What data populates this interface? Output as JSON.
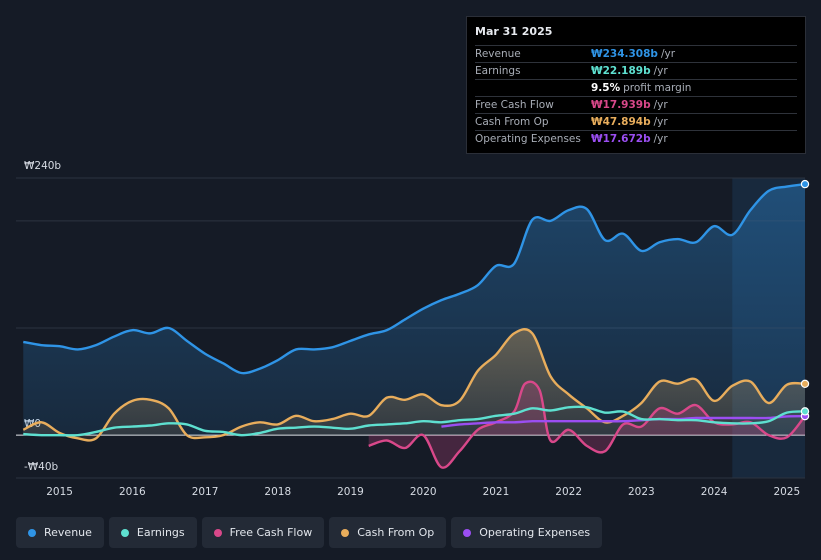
{
  "colors": {
    "revenue": "#2f94e6",
    "earnings": "#5ee0d0",
    "fcf": "#d9488a",
    "cfo": "#e8ad5c",
    "opex": "#9b4ef2"
  },
  "tooltip": {
    "date": "Mar 31 2025",
    "rows": [
      {
        "label": "Revenue",
        "value": "₩234.308b",
        "unit": "/yr",
        "color": "#2f94e6"
      },
      {
        "label": "Earnings",
        "value": "₩22.189b",
        "unit": "/yr",
        "color": "#5ee0d0"
      },
      {
        "label": "",
        "value": "9.5%",
        "unit": "profit margin",
        "color": "#ffffff"
      },
      {
        "label": "Free Cash Flow",
        "value": "₩17.939b",
        "unit": "/yr",
        "color": "#d9488a"
      },
      {
        "label": "Cash From Op",
        "value": "₩47.894b",
        "unit": "/yr",
        "color": "#e8ad5c"
      },
      {
        "label": "Operating Expenses",
        "value": "₩17.672b",
        "unit": "/yr",
        "color": "#9b4ef2"
      }
    ]
  },
  "legend": [
    {
      "label": "Revenue",
      "color": "#2f94e6"
    },
    {
      "label": "Earnings",
      "color": "#5ee0d0"
    },
    {
      "label": "Free Cash Flow",
      "color": "#d9488a"
    },
    {
      "label": "Cash From Op",
      "color": "#e8ad5c"
    },
    {
      "label": "Operating Expenses",
      "color": "#9b4ef2"
    }
  ],
  "chart_data": {
    "type": "area",
    "title": "",
    "ylabel": "",
    "ylim": [
      -40,
      240
    ],
    "y_ticks": [
      {
        "v": 240,
        "label": "₩240b"
      },
      {
        "v": 0,
        "label": "₩0"
      },
      {
        "v": -40,
        "label": "-₩40b"
      }
    ],
    "xlim": [
      2014.4,
      2025.25
    ],
    "x_ticks": [
      "2015",
      "2016",
      "2017",
      "2018",
      "2019",
      "2020",
      "2021",
      "2022",
      "2023",
      "2024",
      "2025"
    ],
    "highlight_from": 2024.25,
    "series": [
      {
        "name": "Revenue",
        "key": "revenue",
        "fill": true,
        "x": [
          2014.5,
          2014.75,
          2015.0,
          2015.25,
          2015.5,
          2015.75,
          2016.0,
          2016.25,
          2016.5,
          2016.75,
          2017.0,
          2017.25,
          2017.5,
          2017.75,
          2018.0,
          2018.25,
          2018.5,
          2018.75,
          2019.0,
          2019.25,
          2019.5,
          2019.75,
          2020.0,
          2020.25,
          2020.5,
          2020.75,
          2021.0,
          2021.25,
          2021.5,
          2021.75,
          2022.0,
          2022.25,
          2022.5,
          2022.75,
          2023.0,
          2023.25,
          2023.5,
          2023.75,
          2024.0,
          2024.25,
          2024.5,
          2024.75,
          2025.0,
          2025.25
        ],
        "values": [
          87,
          84,
          83,
          80,
          84,
          92,
          98,
          95,
          100,
          88,
          76,
          67,
          58,
          62,
          70,
          80,
          80,
          82,
          88,
          94,
          98,
          108,
          118,
          126,
          132,
          140,
          158,
          160,
          201,
          200,
          210,
          211,
          182,
          188,
          172,
          180,
          183,
          180,
          195,
          187,
          210,
          228,
          232,
          234.3
        ]
      },
      {
        "name": "Earnings",
        "key": "earnings",
        "fill": false,
        "x": [
          2014.5,
          2014.75,
          2015.0,
          2015.25,
          2015.5,
          2015.75,
          2016.0,
          2016.25,
          2016.5,
          2016.75,
          2017.0,
          2017.25,
          2017.5,
          2017.75,
          2018.0,
          2018.25,
          2018.5,
          2018.75,
          2019.0,
          2019.25,
          2019.5,
          2019.75,
          2020.0,
          2020.25,
          2020.5,
          2020.75,
          2021.0,
          2021.25,
          2021.5,
          2021.75,
          2022.0,
          2022.25,
          2022.5,
          2022.75,
          2023.0,
          2023.25,
          2023.5,
          2023.75,
          2024.0,
          2024.25,
          2024.5,
          2024.75,
          2025.0,
          2025.25
        ],
        "values": [
          1,
          0,
          0,
          0,
          3,
          7,
          8,
          9,
          11,
          10,
          4,
          3,
          0,
          2,
          6,
          7,
          8,
          7,
          6,
          9,
          10,
          11,
          13,
          12,
          14,
          15,
          18,
          20,
          25,
          23,
          26,
          26,
          21,
          22,
          15,
          15,
          14,
          14,
          12,
          11,
          11,
          13,
          21,
          22.2
        ]
      },
      {
        "name": "Free Cash Flow",
        "key": "fcf",
        "fill": false,
        "x": [
          2019.25,
          2019.5,
          2019.75,
          2020.0,
          2020.25,
          2020.5,
          2020.75,
          2021.0,
          2021.25,
          2021.4,
          2021.6,
          2021.75,
          2022.0,
          2022.25,
          2022.5,
          2022.75,
          2023.0,
          2023.25,
          2023.5,
          2023.75,
          2024.0,
          2024.25,
          2024.5,
          2024.75,
          2025.0,
          2025.25
        ],
        "values": [
          -10,
          -5,
          -12,
          0,
          -30,
          -15,
          5,
          12,
          22,
          48,
          42,
          -5,
          5,
          -10,
          -15,
          10,
          8,
          25,
          20,
          28,
          12,
          10,
          12,
          0,
          -2,
          17.9
        ]
      },
      {
        "name": "Cash From Op",
        "key": "cfo",
        "fill": true,
        "x": [
          2014.5,
          2014.75,
          2015.0,
          2015.25,
          2015.5,
          2015.75,
          2016.0,
          2016.25,
          2016.5,
          2016.75,
          2017.0,
          2017.25,
          2017.5,
          2017.75,
          2018.0,
          2018.25,
          2018.5,
          2018.75,
          2019.0,
          2019.25,
          2019.5,
          2019.75,
          2020.0,
          2020.25,
          2020.5,
          2020.75,
          2021.0,
          2021.25,
          2021.5,
          2021.75,
          2022.0,
          2022.25,
          2022.5,
          2022.75,
          2023.0,
          2023.25,
          2023.5,
          2023.75,
          2024.0,
          2024.25,
          2024.5,
          2024.75,
          2025.0,
          2025.25
        ],
        "values": [
          5,
          12,
          2,
          -3,
          -3,
          20,
          32,
          33,
          25,
          0,
          -2,
          0,
          8,
          12,
          10,
          18,
          13,
          15,
          20,
          18,
          35,
          33,
          38,
          28,
          32,
          60,
          75,
          95,
          95,
          55,
          38,
          25,
          12,
          18,
          30,
          50,
          48,
          52,
          32,
          46,
          50,
          30,
          47,
          47.9
        ]
      },
      {
        "name": "Operating Expenses",
        "key": "opex",
        "fill": false,
        "x": [
          2020.25,
          2020.5,
          2020.75,
          2021.0,
          2021.25,
          2021.5,
          2021.75,
          2022.0,
          2022.25,
          2022.5,
          2022.75,
          2023.0,
          2023.25,
          2023.5,
          2023.75,
          2024.0,
          2024.25,
          2024.5,
          2024.75,
          2025.0,
          2025.25
        ],
        "values": [
          8,
          10,
          11,
          12,
          12,
          13,
          13,
          13,
          13,
          13,
          13,
          14,
          15,
          15,
          16,
          16,
          16,
          16,
          16,
          17.5,
          17.7
        ]
      }
    ]
  }
}
